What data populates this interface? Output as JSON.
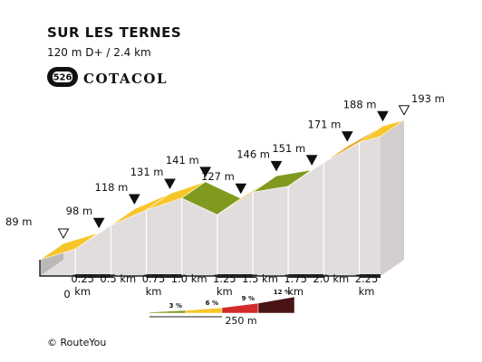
{
  "header": {
    "title": "SUR LES TERNES",
    "subtitle": "120 m D+ / 2.4 km",
    "badge_number": "526",
    "brand": "COTACOL"
  },
  "legend": {
    "items": [
      {
        "label": "3 %",
        "color": "#7f9a1f"
      },
      {
        "label": "6 %",
        "color": "#f7c62b"
      },
      {
        "label": "9 %",
        "color": "#d32a2a"
      },
      {
        "label": "12 %",
        "color": "#4a1414"
      }
    ],
    "scale_label": "250 m"
  },
  "footer": {
    "copyright": "© RouteYou"
  },
  "colors": {
    "side": "#e2dddd",
    "top": "#b8b3b3",
    "outline": "#222222"
  },
  "chart_data": {
    "type": "area",
    "title": "SUR LES TERNES",
    "x_unit": "km",
    "y_unit": "m",
    "x_ticks": [
      "0",
      "0.25 km",
      "0.5 km",
      "0.75 km",
      "1.0 km",
      "1.25 km",
      "1.5 km",
      "1.75 km",
      "2.0 km",
      "2.25 km"
    ],
    "points": [
      {
        "x": 0.0,
        "y": 89,
        "label": "89 m",
        "marker": "hollow"
      },
      {
        "x": 0.25,
        "y": 98,
        "label": "98 m",
        "marker": "filled"
      },
      {
        "x": 0.5,
        "y": 118,
        "label": "118 m",
        "marker": "filled"
      },
      {
        "x": 0.75,
        "y": 131,
        "label": "131 m",
        "marker": "filled"
      },
      {
        "x": 1.0,
        "y": 141,
        "label": "141 m",
        "marker": "filled"
      },
      {
        "x": 1.25,
        "y": 127,
        "label": "127 m",
        "marker": "filled"
      },
      {
        "x": 1.5,
        "y": 146,
        "label": "146 m",
        "marker": "filled"
      },
      {
        "x": 1.75,
        "y": 151,
        "label": "151 m",
        "marker": "filled"
      },
      {
        "x": 2.0,
        "y": 171,
        "label": "171 m",
        "marker": "filled"
      },
      {
        "x": 2.25,
        "y": 188,
        "label": "188 m",
        "marker": "filled"
      },
      {
        "x": 2.4,
        "y": 193,
        "label": "193 m",
        "marker": "hollow"
      }
    ],
    "segment_colors": [
      "#f7c62b",
      "#eda61b",
      "#f7c62b",
      "#f7c62b",
      "#7f9a1f",
      "#eda61b",
      "#7f9a1f",
      "#eda61b",
      "#eda61b",
      "#f7c62b"
    ]
  }
}
